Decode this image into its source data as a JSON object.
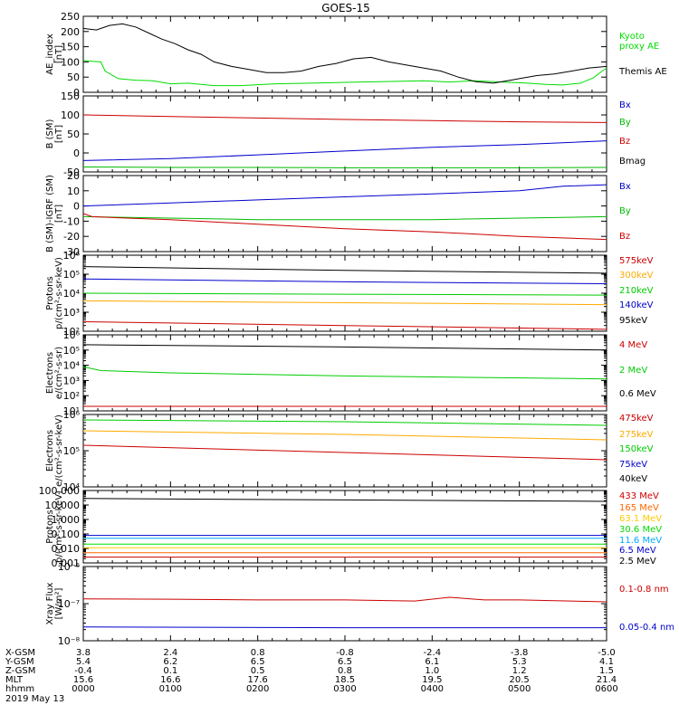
{
  "title": "GOES-15",
  "time_axis": {
    "start_hour": 0,
    "end_hour": 6
  },
  "chart_data": [
    {
      "type": "line",
      "key": "ae",
      "ylabel": [
        "AE_index",
        "[nT]"
      ],
      "ylim": [
        0,
        250
      ],
      "log": false,
      "ticks": [
        "250",
        "200",
        "150",
        "100",
        "50",
        "0"
      ],
      "tick_values": [
        250,
        200,
        150,
        100,
        50,
        0
      ],
      "series": [
        {
          "name": "Kyoto\nproxy AE",
          "color": "#00dd00",
          "x": [
            0,
            0.1,
            0.2,
            0.25,
            0.4,
            0.6,
            0.8,
            1.0,
            1.2,
            1.5,
            1.8,
            2.2,
            2.6,
            2.9,
            3.2,
            3.6,
            3.9,
            4.2,
            4.5,
            4.8,
            5.1,
            5.3,
            5.5,
            5.7,
            5.85,
            5.95,
            6.0
          ],
          "y": [
            105,
            102,
            100,
            70,
            45,
            40,
            38,
            28,
            30,
            22,
            22,
            28,
            30,
            32,
            34,
            36,
            38,
            34,
            38,
            34,
            30,
            26,
            24,
            30,
            48,
            70,
            80
          ]
        },
        {
          "name": "Themis AE",
          "color": "#000000",
          "x": [
            0,
            0.15,
            0.3,
            0.45,
            0.6,
            0.75,
            0.9,
            1.05,
            1.2,
            1.35,
            1.5,
            1.7,
            1.9,
            2.1,
            2.3,
            2.5,
            2.7,
            2.9,
            3.1,
            3.3,
            3.5,
            3.7,
            3.9,
            4.1,
            4.3,
            4.5,
            4.7,
            4.9,
            5.0,
            5.2,
            5.4,
            5.6,
            5.8,
            6.0
          ],
          "y": [
            210,
            205,
            220,
            225,
            215,
            195,
            175,
            160,
            140,
            125,
            100,
            85,
            75,
            65,
            65,
            70,
            85,
            95,
            110,
            115,
            100,
            90,
            80,
            70,
            50,
            35,
            30,
            40,
            45,
            55,
            60,
            70,
            80,
            85
          ]
        }
      ]
    },
    {
      "type": "line",
      "key": "bsm",
      "ylabel": [
        "B (SM)",
        "[nT]"
      ],
      "ylim": [
        -50,
        150
      ],
      "log": false,
      "ticks": [
        "150",
        "100",
        "50",
        "0",
        "-50"
      ],
      "tick_values": [
        150,
        100,
        50,
        0,
        -50
      ],
      "series": [
        {
          "name": "Bx",
          "color": "#0000cc",
          "x": [
            0,
            1,
            2,
            3,
            4,
            5,
            6
          ],
          "y": [
            -20,
            -15,
            -5,
            5,
            15,
            22,
            32
          ]
        },
        {
          "name": "By",
          "color": "#00bb00",
          "x": [
            0,
            1,
            2,
            3,
            4,
            5,
            6
          ],
          "y": [
            -37,
            -38,
            -38,
            -39,
            -39,
            -39,
            -38
          ]
        },
        {
          "name": "Bz",
          "color": "#cc0000",
          "x": [
            0,
            1,
            2,
            3,
            4,
            5,
            6
          ],
          "y": [
            100,
            96,
            92,
            88,
            85,
            82,
            80
          ]
        },
        {
          "name": "Bmag",
          "color": "#000000",
          "x": [],
          "y": []
        }
      ]
    },
    {
      "type": "line",
      "key": "bigrf",
      "ylabel": [
        "B (SM)-IGRF (SM)",
        "[nT]"
      ],
      "ylim": [
        -30,
        20
      ],
      "log": false,
      "ticks": [
        "20",
        "10",
        "0",
        "-10",
        "-20",
        "-30"
      ],
      "tick_values": [
        20,
        10,
        0,
        -10,
        -20,
        -30
      ],
      "series": [
        {
          "name": "Bx",
          "color": "#0000cc",
          "x": [
            0,
            1,
            2,
            3,
            4,
            5,
            5.5,
            6
          ],
          "y": [
            0,
            2,
            4,
            6,
            8,
            10,
            13,
            14
          ]
        },
        {
          "name": "By",
          "color": "#00bb00",
          "x": [
            0,
            1,
            2,
            3,
            4,
            5,
            6
          ],
          "y": [
            -7,
            -8,
            -9,
            -9,
            -9,
            -8,
            -7
          ]
        },
        {
          "name": "Bz",
          "color": "#cc0000",
          "x": [
            0,
            0.1,
            0.5,
            1,
            2,
            3,
            4,
            5,
            6
          ],
          "y": [
            -5,
            -7,
            -8,
            -9,
            -12,
            -15,
            -17,
            -20,
            -22
          ]
        }
      ]
    },
    {
      "type": "line",
      "key": "protons",
      "ylabel": [
        "Protons",
        "p/(cm²-s-sr-keV)"
      ],
      "log": true,
      "ylim_exp": [
        2,
        6
      ],
      "ticks": [
        "10²",
        "10³",
        "10⁴",
        "10⁵",
        "10⁶"
      ],
      "tick_values": [
        2,
        3,
        4,
        5,
        6
      ],
      "series": [
        {
          "name": "575keV",
          "color": "#cc0000",
          "x": [
            0,
            3,
            6
          ],
          "y": [
            2.5,
            2.3,
            2.1
          ]
        },
        {
          "name": "300keV",
          "color": "#ffaa00",
          "x": [
            0,
            3,
            6
          ],
          "y": [
            3.6,
            3.5,
            3.4
          ]
        },
        {
          "name": "210keV",
          "color": "#00cc00",
          "x": [
            0,
            3,
            6
          ],
          "y": [
            4.0,
            3.95,
            3.9
          ]
        },
        {
          "name": "140keV",
          "color": "#0000cc",
          "x": [
            0,
            3,
            6
          ],
          "y": [
            4.75,
            4.6,
            4.5
          ]
        },
        {
          "name": "95keV",
          "color": "#000000",
          "x": [
            0,
            3,
            6
          ],
          "y": [
            5.4,
            5.2,
            5.05
          ]
        }
      ]
    },
    {
      "type": "line",
      "key": "electrons_mev",
      "ylabel": [
        "Electrons",
        "e/(cm²-s-sr)"
      ],
      "log": true,
      "ylim_exp": [
        1,
        6
      ],
      "ticks": [
        "10¹",
        "10²",
        "10³",
        "10⁴",
        "10⁵",
        "10⁶"
      ],
      "tick_values": [
        1,
        2,
        3,
        4,
        5,
        6
      ],
      "series": [
        {
          "name": "4 MeV",
          "color": "#cc0000",
          "x": [
            0,
            3,
            6
          ],
          "y": [
            1.3,
            1.3,
            1.3
          ]
        },
        {
          "name": "2 MeV",
          "color": "#00cc00",
          "x": [
            0,
            0.2,
            1,
            3,
            6
          ],
          "y": [
            3.9,
            3.65,
            3.5,
            3.3,
            3.1
          ]
        },
        {
          "name": "0.6 MeV",
          "color": "#000000",
          "x": [
            0,
            3,
            6
          ],
          "y": [
            5.35,
            5.2,
            5.0
          ]
        }
      ]
    },
    {
      "type": "line",
      "key": "electrons_kev",
      "ylabel": [
        "Electrons",
        "e/(cm²-s-sr-keV)"
      ],
      "log": true,
      "ylim_exp": [
        4,
        6
      ],
      "ticks": [
        "10⁴",
        "10⁵",
        "10⁶"
      ],
      "tick_values": [
        4,
        5,
        6
      ],
      "series": [
        {
          "name": "475keV",
          "color": "#cc0000",
          "x": [
            0,
            3,
            6
          ],
          "y": [
            5.15,
            4.95,
            4.75
          ]
        },
        {
          "name": "275keV",
          "color": "#ffaa00",
          "x": [
            0,
            3,
            6
          ],
          "y": [
            5.55,
            5.45,
            5.3
          ]
        },
        {
          "name": "150keV",
          "color": "#00cc00",
          "x": [
            0,
            3,
            6
          ],
          "y": [
            5.85,
            5.8,
            5.7
          ]
        },
        {
          "name": "75keV",
          "color": "#0000cc",
          "x": [],
          "y": []
        },
        {
          "name": "40keV",
          "color": "#000000",
          "x": [],
          "y": []
        }
      ]
    },
    {
      "type": "line",
      "key": "protons_mev",
      "ylabel": [
        "Protons",
        "p/(cm²-s-sr-keV)"
      ],
      "log": true,
      "ylim_exp": [
        -3,
        2
      ],
      "ticks": [
        "0.001",
        "0.010",
        "0.100",
        "1.000",
        "10.000",
        "100.000"
      ],
      "tick_values": [
        -3,
        -2,
        -1,
        0,
        1,
        2
      ],
      "series": [
        {
          "name": "433 MeV",
          "color": "#cc0000",
          "x": [
            0,
            6
          ],
          "y": [
            -2.6,
            -2.6
          ]
        },
        {
          "name": "165 MeV",
          "color": "#ff6600",
          "x": [
            0,
            6
          ],
          "y": [
            -2.3,
            -2.3
          ]
        },
        {
          "name": "63.1 MeV",
          "color": "#ffcc00",
          "x": [
            0,
            6
          ],
          "y": [
            -1.95,
            -1.95
          ]
        },
        {
          "name": "30.6 MeV",
          "color": "#00dd00",
          "x": [
            0,
            6
          ],
          "y": [
            -1.7,
            -1.7
          ]
        },
        {
          "name": "11.6 MeV",
          "color": "#00aaff",
          "x": [
            0,
            6
          ],
          "y": [
            -1.3,
            -1.3
          ]
        },
        {
          "name": "6.5 MeV",
          "color": "#0000cc",
          "x": [
            0,
            6
          ],
          "y": [
            -1.1,
            -1.1
          ]
        },
        {
          "name": "2.5 MeV",
          "color": "#000000",
          "x": [
            0,
            3,
            6
          ],
          "y": [
            1.45,
            1.35,
            1.25
          ]
        }
      ]
    },
    {
      "type": "line",
      "key": "xray",
      "ylabel": [
        "Xray Flux",
        "[W/m²]"
      ],
      "log": true,
      "ylim_exp": [
        -8,
        -6
      ],
      "ticks": [
        "10⁻⁸",
        "10⁻⁷",
        "10⁻⁶"
      ],
      "tick_values": [
        -8,
        -7,
        -6
      ],
      "series": [
        {
          "name": "0.1-0.8 nm",
          "color": "#cc0000",
          "x": [
            0,
            1,
            2,
            3,
            3.8,
            4.2,
            4.6,
            5,
            6
          ],
          "y": [
            -6.87,
            -6.88,
            -6.9,
            -6.9,
            -6.93,
            -6.83,
            -6.9,
            -6.9,
            -6.95
          ]
        },
        {
          "name": "0.05-0.4 nm",
          "color": "#0000cc",
          "x": [
            0,
            3,
            6
          ],
          "y": [
            -7.63,
            -7.65,
            -7.65
          ]
        }
      ]
    }
  ],
  "footer": {
    "rows": [
      {
        "label": "X-GSM",
        "values": [
          "3.8",
          "2.4",
          "0.8",
          "-0.8",
          "-2.4",
          "-3.8",
          "-5.0"
        ]
      },
      {
        "label": "Y-GSM",
        "values": [
          "5.4",
          "6.2",
          "6.5",
          "6.5",
          "6.1",
          "5.3",
          "4.1"
        ]
      },
      {
        "label": "Z-GSM",
        "values": [
          "-0.4",
          "0.1",
          "0.5",
          "0.8",
          "1.0",
          "1.2",
          "1.5"
        ]
      },
      {
        "label": "MLT",
        "values": [
          "15.6",
          "16.6",
          "17.6",
          "18.5",
          "19.5",
          "20.5",
          "21.4"
        ]
      },
      {
        "label": "hhmm",
        "values": [
          "0000",
          "0100",
          "0200",
          "0300",
          "0400",
          "0500",
          "0600"
        ]
      }
    ],
    "date": "2019 May 13"
  }
}
